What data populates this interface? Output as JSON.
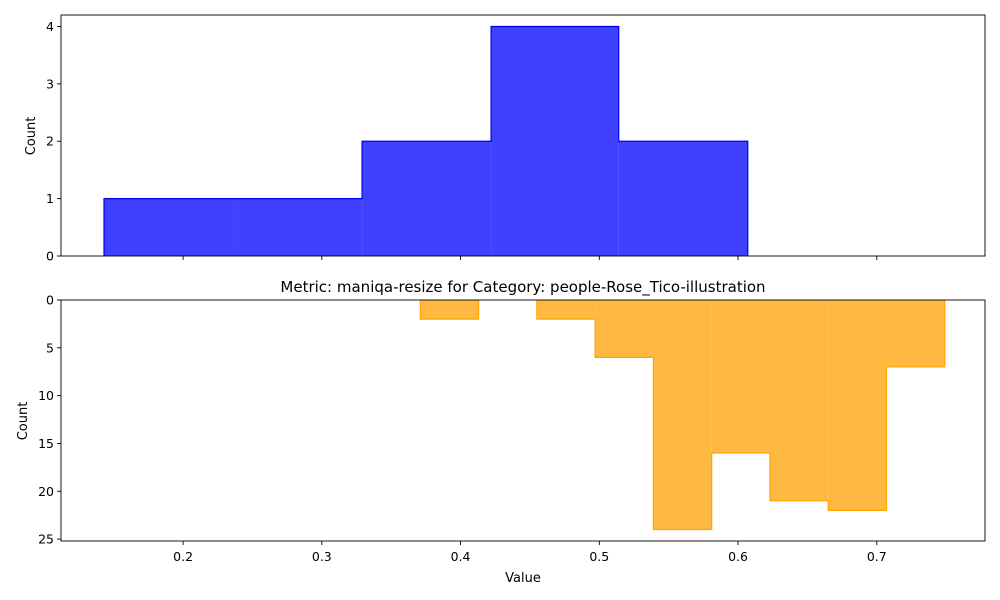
{
  "colors": {
    "top_fill": "#4040ff",
    "top_stroke": "#0000ee",
    "bottom_fill": "#ffb841",
    "bottom_stroke": "#ffa500"
  },
  "chart_data": [
    {
      "type": "histogram",
      "title": "",
      "xlabel": "",
      "ylabel": "Count",
      "xlim": [
        0.112,
        0.778
      ],
      "ylim": [
        0,
        4.2
      ],
      "y_inverted": false,
      "xticks": [],
      "yticks": [
        0,
        1,
        2,
        3,
        4
      ],
      "grid": false,
      "bin_edges": [
        0.143,
        0.236,
        0.329,
        0.422,
        0.514,
        0.607,
        0.7,
        0.793
      ],
      "counts": [
        1,
        1,
        2,
        4,
        2,
        0,
        0
      ]
    },
    {
      "type": "histogram",
      "title": "Metric: maniqa-resize for Category: people-Rose_Tico-illustration",
      "xlabel": "Value",
      "ylabel": "Count",
      "xlim": [
        0.112,
        0.778
      ],
      "ylim": [
        0,
        25.2
      ],
      "y_inverted": true,
      "xticks": [
        0.2,
        0.3,
        0.4,
        0.5,
        0.6,
        0.7
      ],
      "yticks": [
        0,
        5,
        10,
        15,
        20,
        25
      ],
      "grid": false,
      "bin_edges": [
        0.371,
        0.413,
        0.455,
        0.497,
        0.539,
        0.581,
        0.623,
        0.665,
        0.707,
        0.749
      ],
      "counts": [
        2,
        0,
        2,
        6,
        24,
        16,
        21,
        22,
        7
      ]
    }
  ]
}
